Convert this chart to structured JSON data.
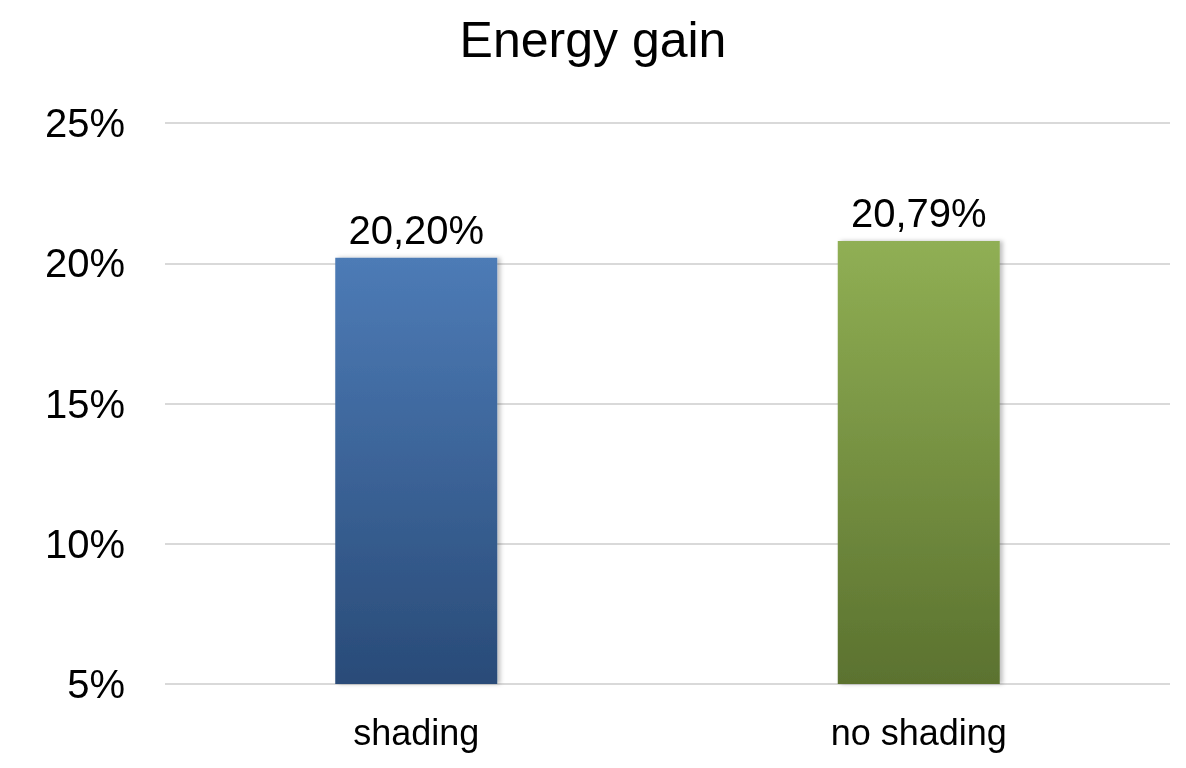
{
  "chart_data": {
    "type": "bar",
    "title": "Energy gain",
    "categories": [
      "shading",
      "no shading"
    ],
    "values": [
      20.2,
      20.79
    ],
    "value_labels": [
      "20,20%",
      "20,79%"
    ],
    "colors": [
      "#3d6fb0",
      "#86a845"
    ],
    "ylim": [
      5,
      25
    ],
    "yticks": [
      {
        "value": 5,
        "label": "5%"
      },
      {
        "value": 10,
        "label": "10%"
      },
      {
        "value": 15,
        "label": "15%"
      },
      {
        "value": 20,
        "label": "20%"
      },
      {
        "value": 25,
        "label": "25%"
      }
    ],
    "grid": "y"
  }
}
